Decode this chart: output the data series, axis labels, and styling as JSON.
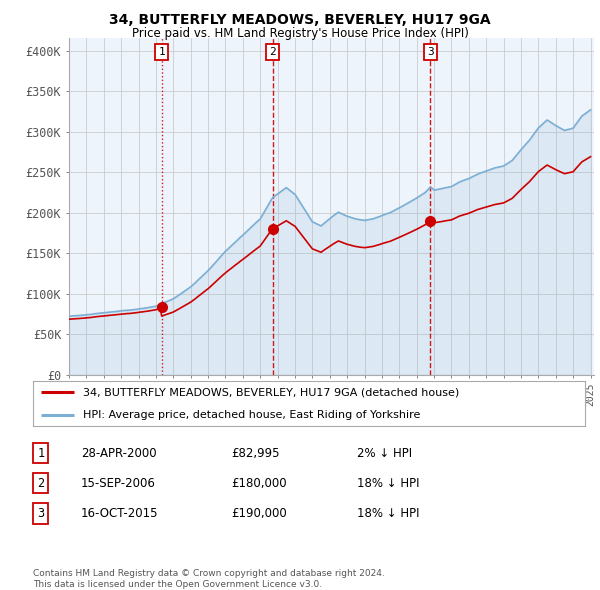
{
  "title": "34, BUTTERFLY MEADOWS, BEVERLEY, HU17 9GA",
  "subtitle": "Price paid vs. HM Land Registry's House Price Index (HPI)",
  "ylabel_ticks": [
    "£0",
    "£50K",
    "£100K",
    "£150K",
    "£200K",
    "£250K",
    "£300K",
    "£350K",
    "£400K"
  ],
  "ytick_values": [
    0,
    50000,
    100000,
    150000,
    200000,
    250000,
    300000,
    350000,
    400000
  ],
  "ylim": [
    0,
    415000
  ],
  "sale_prices": [
    82995,
    180000,
    190000
  ],
  "sale_labels": [
    "1",
    "2",
    "3"
  ],
  "sale_date_nums": [
    2000.33,
    2006.71,
    2015.79
  ],
  "sale_vline_styles": [
    "dotted",
    "dashed",
    "dashed"
  ],
  "legend_entries": [
    "34, BUTTERFLY MEADOWS, BEVERLEY, HU17 9GA (detached house)",
    "HPI: Average price, detached house, East Riding of Yorkshire"
  ],
  "table_rows": [
    [
      "1",
      "28-APR-2000",
      "£82,995",
      "2% ↓ HPI"
    ],
    [
      "2",
      "15-SEP-2006",
      "£180,000",
      "18% ↓ HPI"
    ],
    [
      "3",
      "16-OCT-2015",
      "£190,000",
      "18% ↓ HPI"
    ]
  ],
  "footnote": "Contains HM Land Registry data © Crown copyright and database right 2024.\nThis data is licensed under the Open Government Licence v3.0.",
  "property_line_color": "#cc0000",
  "hpi_line_color": "#7bafd4",
  "hpi_fill_color": "#ddeeff",
  "sale_marker_color": "#cc0000",
  "vline_color": "#cc0000",
  "grid_color": "#cccccc",
  "background_color": "#ffffff",
  "chart_bg_color": "#eef4fb",
  "table_border_color": "#cc0000"
}
